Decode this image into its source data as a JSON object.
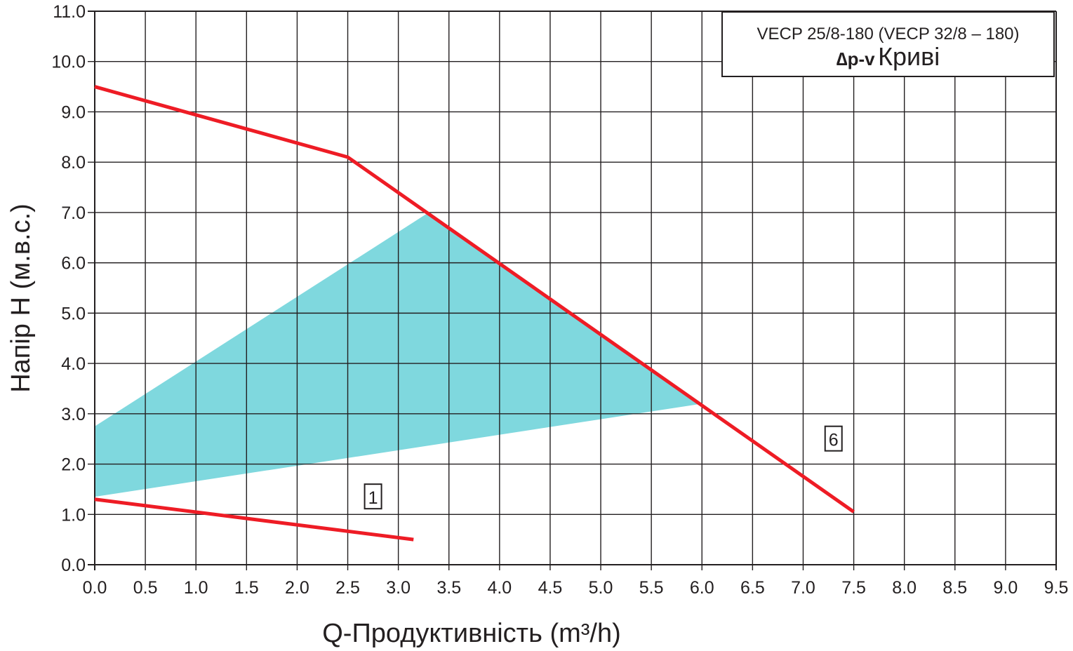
{
  "chart_data": {
    "type": "line",
    "title_line1": "VECP 25/8-180 (VECP 32/8 – 180)",
    "title_symbol": "∆p-v",
    "title_word": "Криві",
    "xlabel": "Q-Продуктивність (m³/h)",
    "ylabel": "Напір H (м.в.с.)",
    "xlim": [
      0,
      9.5
    ],
    "ylim": [
      0,
      11
    ],
    "x_ticks": [
      "0.0",
      "0.5",
      "1.0",
      "1.5",
      "2.0",
      "2.5",
      "3.0",
      "3.5",
      "4.0",
      "4.5",
      "5.0",
      "5.5",
      "6.0",
      "6.5",
      "7.0",
      "7.5",
      "8.0",
      "8.5",
      "9.0",
      "9.5"
    ],
    "y_ticks": [
      "0.0",
      "1.0",
      "2.0",
      "3.0",
      "4.0",
      "5.0",
      "6.0",
      "7.0",
      "8.0",
      "9.0",
      "10.0",
      "11.0"
    ],
    "grid": true,
    "region": {
      "color": "#7fd8de",
      "points": [
        [
          0,
          2.75
        ],
        [
          3.3,
          7.0
        ],
        [
          6.0,
          3.2
        ],
        [
          0,
          1.35
        ]
      ]
    },
    "series": [
      {
        "label": "1",
        "color": "#ee1c25",
        "points": [
          [
            0,
            1.3
          ],
          [
            3.15,
            0.5
          ]
        ],
        "label_at": [
          2.75,
          1.35
        ]
      },
      {
        "label": "6",
        "color": "#ee1c25",
        "points": [
          [
            0,
            9.5
          ],
          [
            2.5,
            8.1
          ],
          [
            7.5,
            1.05
          ]
        ],
        "label_at": [
          7.3,
          2.5
        ]
      }
    ]
  }
}
